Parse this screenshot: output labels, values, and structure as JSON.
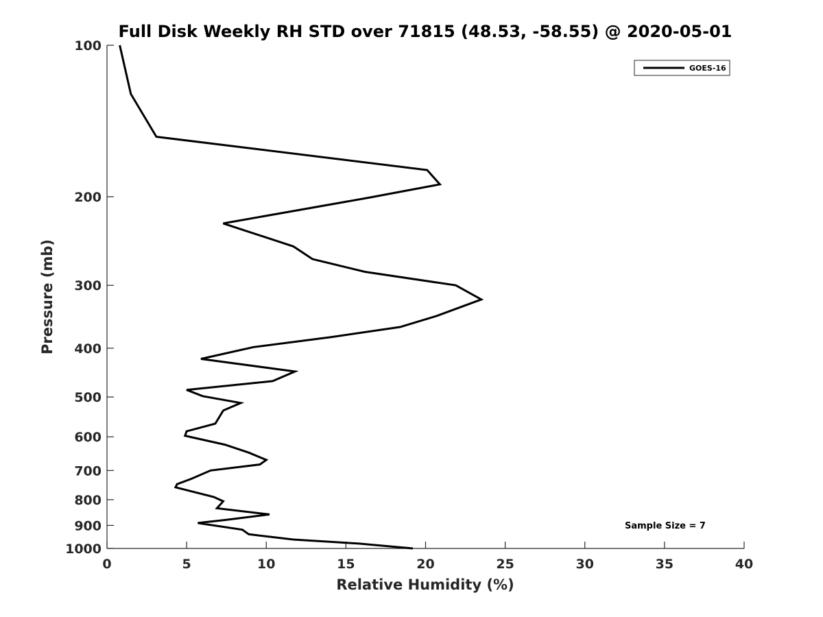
{
  "chart_data": {
    "type": "line",
    "title": "Full Disk Weekly RH STD over 71815 (48.53, -58.55) @ 2020-05-01",
    "xlabel": "Relative Humidity (%)",
    "ylabel": "Pressure (mb)",
    "xlim": [
      0,
      40
    ],
    "ylim": [
      100,
      1000
    ],
    "yscale": "log",
    "y_reversed": true,
    "grid": false,
    "legend_position": "top-right",
    "x_ticks": [
      0,
      5,
      10,
      15,
      20,
      25,
      30,
      35,
      40
    ],
    "y_ticks": [
      100,
      200,
      300,
      400,
      500,
      600,
      700,
      800,
      900,
      1000
    ],
    "series": [
      {
        "name": "GOES-16",
        "color": "#000000",
        "points": [
          [
            0.8,
            100
          ],
          [
            1.5,
            125
          ],
          [
            3.1,
            152
          ],
          [
            20.1,
            177
          ],
          [
            20.9,
            189
          ],
          [
            16.4,
            201
          ],
          [
            7.3,
            226
          ],
          [
            11.7,
            251
          ],
          [
            12.9,
            266
          ],
          [
            16.2,
            282
          ],
          [
            21.9,
            300
          ],
          [
            23.5,
            320
          ],
          [
            20.7,
            345
          ],
          [
            18.4,
            363
          ],
          [
            14.1,
            380
          ],
          [
            9.2,
            398
          ],
          [
            5.9,
            420
          ],
          [
            11.8,
            445
          ],
          [
            10.4,
            465
          ],
          [
            5.0,
            484
          ],
          [
            6.0,
            498
          ],
          [
            8.4,
            514
          ],
          [
            7.3,
            532
          ],
          [
            6.8,
            565
          ],
          [
            5.0,
            585
          ],
          [
            4.9,
            597
          ],
          [
            7.4,
            622
          ],
          [
            8.9,
            645
          ],
          [
            10.0,
            667
          ],
          [
            9.6,
            681
          ],
          [
            6.5,
            700
          ],
          [
            5.3,
            727
          ],
          [
            4.4,
            745
          ],
          [
            4.3,
            756
          ],
          [
            6.7,
            790
          ],
          [
            7.3,
            806
          ],
          [
            6.9,
            832
          ],
          [
            10.2,
            856
          ],
          [
            7.5,
            877
          ],
          [
            5.7,
            890
          ],
          [
            8.5,
            918
          ],
          [
            8.9,
            937
          ],
          [
            11.7,
            960
          ],
          [
            15.8,
            978
          ],
          [
            19.2,
            1000
          ]
        ]
      }
    ],
    "annotation": "Sample Size = 7"
  }
}
